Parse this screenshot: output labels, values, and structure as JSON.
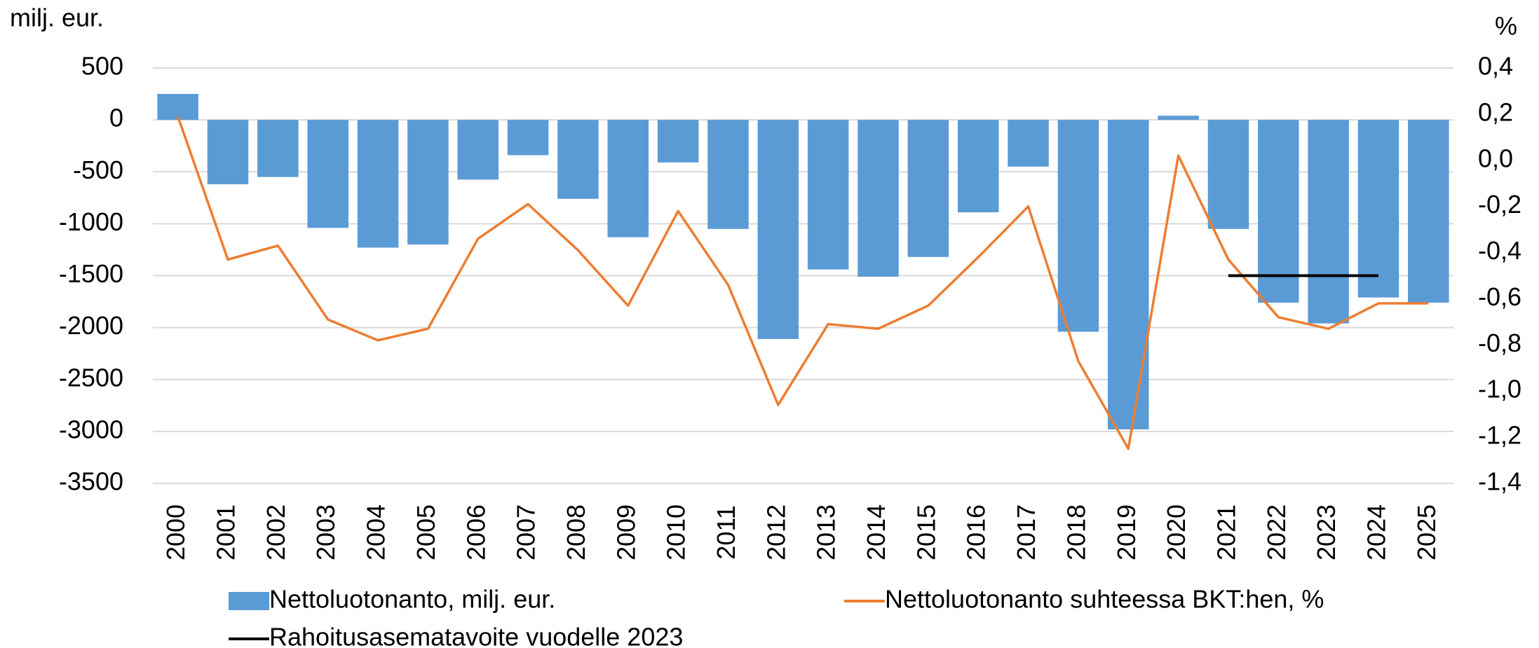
{
  "chart_data": {
    "type": "bar-line",
    "y_label": "milj. eur.",
    "y2_label": "%",
    "categories": [
      "2000",
      "2001",
      "2002",
      "2003",
      "2004",
      "2005",
      "2006",
      "2007",
      "2008",
      "2009",
      "2010",
      "2011",
      "2012",
      "2013",
      "2014",
      "2015",
      "2016",
      "2017",
      "2018",
      "2019",
      "2020",
      "2021",
      "2022",
      "2023",
      "2024",
      "2025"
    ],
    "series": [
      {
        "name": "Nettoluotonanto, milj. eur.",
        "color": "#5b9bd5",
        "type": "bar",
        "values": [
          250,
          -620,
          -550,
          -1040,
          -1230,
          -1200,
          -575,
          -340,
          -760,
          -1130,
          -410,
          -1050,
          -2110,
          -1440,
          -1510,
          -1320,
          -890,
          -450,
          -2040,
          -2980,
          40,
          -1050,
          -1760,
          -1960,
          -1710,
          -1760
        ]
      },
      {
        "name": "Nettoluotonanto suhteessa BKT:hen, %",
        "color": "#ed7d31",
        "type": "line",
        "axis": "y2",
        "values": [
          0.19,
          -0.43,
          -0.37,
          -0.69,
          -0.78,
          -0.73,
          -0.34,
          -0.19,
          -0.39,
          -0.63,
          -0.22,
          -0.54,
          -1.06,
          -0.71,
          -0.73,
          -0.63,
          -0.42,
          -0.2,
          -0.87,
          -1.25,
          0.02,
          -0.43,
          -0.68,
          -0.73,
          -0.62,
          -0.62
        ]
      },
      {
        "name": "Rahoitusasematavoite vuodelle 2023",
        "color": "#000000",
        "type": "line",
        "axis": "y2",
        "values": [
          null,
          null,
          null,
          null,
          null,
          null,
          null,
          null,
          null,
          null,
          null,
          null,
          null,
          null,
          null,
          null,
          null,
          null,
          null,
          null,
          null,
          -0.5,
          -0.5,
          -0.5,
          -0.5,
          null
        ]
      }
    ],
    "ylim": [
      -3500,
      500
    ],
    "yticks": [
      500,
      0,
      -500,
      -1000,
      -1500,
      -2000,
      -2500,
      -3000,
      -3500
    ],
    "y2lim": [
      -1.4,
      0.4
    ],
    "y2ticks": [
      {
        "value": 0.4,
        "label": "0,4"
      },
      {
        "value": 0.2,
        "label": "0,2"
      },
      {
        "value": 0,
        "label": "0,0"
      },
      {
        "value": -0.2,
        "label": "-0,2"
      },
      {
        "value": -0.4,
        "label": "-0,4"
      },
      {
        "value": -0.6,
        "label": "-0,6"
      },
      {
        "value": -0.8,
        "label": "-0,8"
      },
      {
        "value": -1,
        "label": "-1,0"
      },
      {
        "value": -1.2,
        "label": "-1,2"
      },
      {
        "value": -1.4,
        "label": "-1,4"
      }
    ],
    "grid": true
  }
}
